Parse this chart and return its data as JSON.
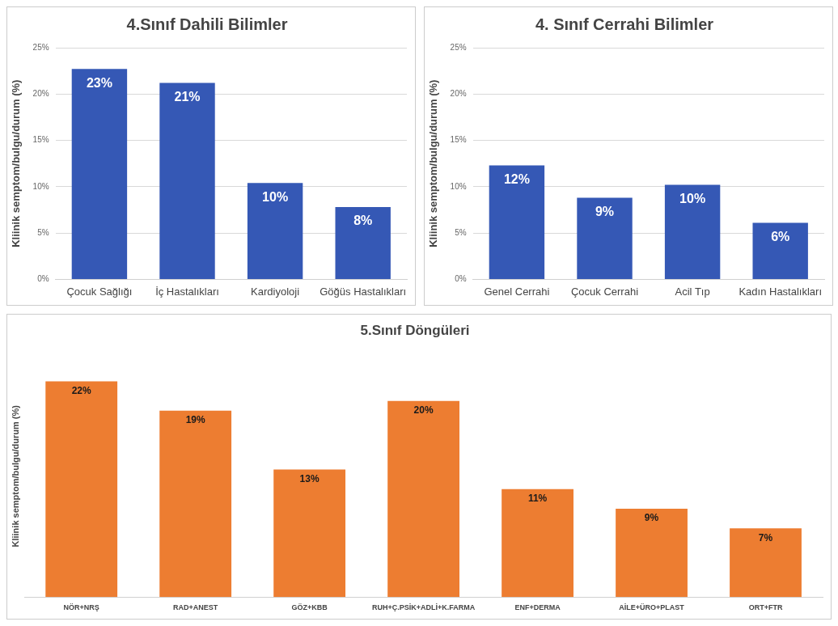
{
  "chart_data": [
    {
      "type": "bar",
      "title": "4.Sınıf Dahili Bilimler",
      "ylabel": "Kliinik semptom/bulgu/durum (%)",
      "categories": [
        "Çocuk Sağlığı",
        "İç Hastalıkları",
        "Kardiyoloji",
        "Göğüs Hastalıkları"
      ],
      "values": [
        22.7,
        21.2,
        10.4,
        7.8
      ],
      "value_labels": [
        "23%",
        "21%",
        "10%",
        "8%"
      ],
      "color": "#3558b5",
      "ylim": [
        0,
        25
      ],
      "yticks": [
        {
          "value": 0,
          "label": "0%"
        },
        {
          "value": 5,
          "label": "5%"
        },
        {
          "value": 10,
          "label": "10%"
        },
        {
          "value": 15,
          "label": "15%"
        },
        {
          "value": 20,
          "label": "20%"
        },
        {
          "value": 25,
          "label": "25%"
        }
      ],
      "grid": "y"
    },
    {
      "type": "bar",
      "title": "4. Sınıf Cerrahi Bilimler",
      "ylabel": "Kliinik semptom/bulgu/durum (%)",
      "categories": [
        "Genel Cerrahi",
        "Çocuk Cerrahi",
        "Acil Tıp",
        "Kadın Hastalıkları"
      ],
      "values": [
        12.3,
        8.8,
        10.2,
        6.1
      ],
      "value_labels": [
        "12%",
        "9%",
        "10%",
        "6%"
      ],
      "color": "#3558b5",
      "ylim": [
        0,
        25
      ],
      "yticks": [
        {
          "value": 0,
          "label": "0%"
        },
        {
          "value": 5,
          "label": "5%"
        },
        {
          "value": 10,
          "label": "10%"
        },
        {
          "value": 15,
          "label": "15%"
        },
        {
          "value": 20,
          "label": "20%"
        },
        {
          "value": 25,
          "label": "25%"
        }
      ],
      "grid": "y"
    },
    {
      "type": "bar",
      "title": "5.Sınıf Döngüleri",
      "ylabel": "Kliinik semptom/bulgu/durum (%)",
      "categories": [
        "NÖR+NRŞ",
        "RAD+ANEST",
        "GÖZ+KBB",
        "RUH+Ç.PSİK+ADLİ+K.FARMA",
        "ENF+DERMA",
        "AİLE+ÜRO+PLAST",
        "ORT+FTR"
      ],
      "values": [
        22,
        19,
        13,
        20,
        11,
        9,
        7
      ],
      "value_labels": [
        "22%",
        "19%",
        "13%",
        "20%",
        "11%",
        "9%",
        "7%"
      ],
      "color": "#ed7d31",
      "tick_labels": "x"
    }
  ]
}
